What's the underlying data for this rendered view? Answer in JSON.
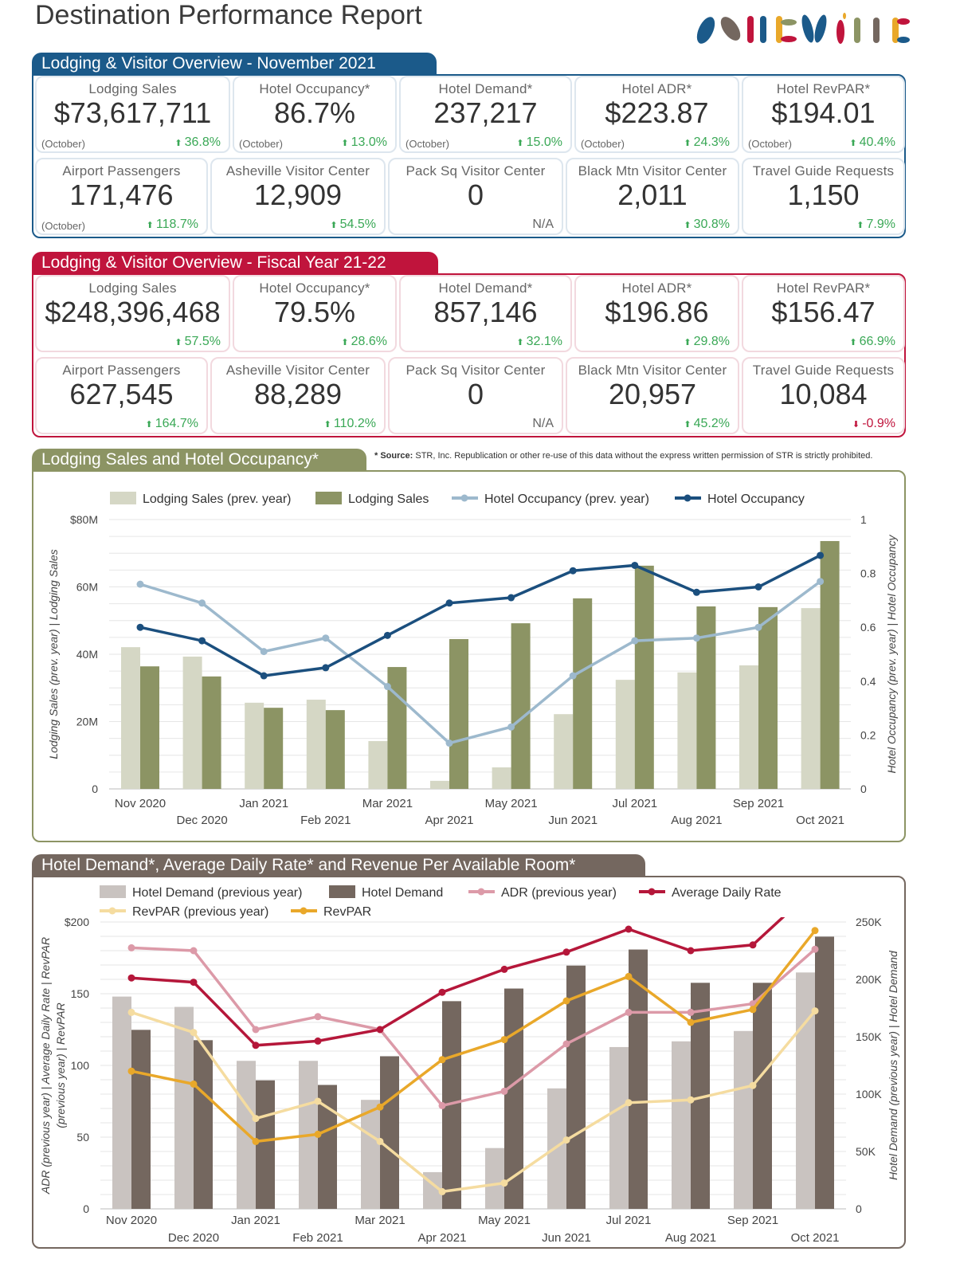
{
  "title": "Destination Performance Report",
  "logo": {
    "text": "ASHEVILLE",
    "colors": [
      "#1b5a8a",
      "#74675f",
      "#c0143c",
      "#e9a82a",
      "#8c9464"
    ]
  },
  "source_note": {
    "label": "* Source:",
    "text": " STR, Inc. Republication or other re-use of this data without the express written permission of STR is strictly prohibited."
  },
  "sections": [
    {
      "title": "Lodging & Visitor Overview -  November 2021",
      "color": "#1b5a8a",
      "rows": [
        [
          {
            "label": "Lodging Sales",
            "value": "$73,617,711",
            "note": "(October)",
            "change": "36.8%",
            "dir": "up"
          },
          {
            "label": "Hotel Occupancy*",
            "value": "86.7%",
            "note": "(October)",
            "change": "13.0%",
            "dir": "up"
          },
          {
            "label": "Hotel Demand*",
            "value": "237,217",
            "note": "(October)",
            "change": "15.0%",
            "dir": "up"
          },
          {
            "label": "Hotel ADR*",
            "value": "$223.87",
            "note": "(October)",
            "change": "24.3%",
            "dir": "up"
          },
          {
            "label": "Hotel RevPAR*",
            "value": "$194.01",
            "note": "(October)",
            "change": "40.4%",
            "dir": "up"
          }
        ],
        [
          {
            "label": "Airport Passengers",
            "value": "171,476",
            "note": "(October)",
            "change": "118.7%",
            "dir": "up"
          },
          {
            "label": "Asheville Visitor Center",
            "value": "12,909",
            "note": "",
            "change": "54.5%",
            "dir": "up"
          },
          {
            "label": "Pack Sq Visitor Center",
            "value": "0",
            "note": "",
            "change": "N/A",
            "dir": "na"
          },
          {
            "label": "Black Mtn Visitor Center",
            "value": "2,011",
            "note": "",
            "change": "30.8%",
            "dir": "up"
          },
          {
            "label": "Travel Guide Requests",
            "value": "1,150",
            "note": "",
            "change": "7.9%",
            "dir": "up"
          }
        ]
      ]
    },
    {
      "title": "Lodging & Visitor Overview - Fiscal Year 21-22",
      "color": "#c0143c",
      "rows": [
        [
          {
            "label": "Lodging Sales",
            "value": "$248,396,468",
            "note": "",
            "change": "57.5%",
            "dir": "up"
          },
          {
            "label": "Hotel Occupancy*",
            "value": "79.5%",
            "note": "",
            "change": "28.6%",
            "dir": "up"
          },
          {
            "label": "Hotel Demand*",
            "value": "857,146",
            "note": "",
            "change": "32.1%",
            "dir": "up"
          },
          {
            "label": "Hotel ADR*",
            "value": "$196.86",
            "note": "",
            "change": "29.8%",
            "dir": "up"
          },
          {
            "label": "Hotel RevPAR*",
            "value": "$156.47",
            "note": "",
            "change": "66.9%",
            "dir": "up"
          }
        ],
        [
          {
            "label": "Airport Passengers",
            "value": "627,545",
            "note": "",
            "change": "164.7%",
            "dir": "up"
          },
          {
            "label": "Asheville Visitor Center",
            "value": "88,289",
            "note": "",
            "change": "110.2%",
            "dir": "up"
          },
          {
            "label": "Pack Sq Visitor Center",
            "value": "0",
            "note": "",
            "change": "N/A",
            "dir": "na"
          },
          {
            "label": "Black Mtn Visitor Center",
            "value": "20,957",
            "note": "",
            "change": "45.2%",
            "dir": "up"
          },
          {
            "label": "Travel Guide Requests",
            "value": "10,084",
            "note": "",
            "change": "-0.9%",
            "dir": "down"
          }
        ]
      ]
    }
  ],
  "chart_data": [
    {
      "type": "bar",
      "title": "Lodging Sales and Hotel Occupancy*",
      "color": "#8c9464",
      "categories": [
        "Nov 2020",
        "Dec 2020",
        "Jan 2021",
        "Feb 2021",
        "Mar 2021",
        "Apr 2021",
        "May 2021",
        "Jun 2021",
        "Jul 2021",
        "Aug 2021",
        "Sep 2021",
        "Oct 2021"
      ],
      "ylabel": "Lodging Sales (prev. year) | Lodging Sales",
      "y2label": "Hotel Occupancy (prev. year) | Hotel Occupancy",
      "ylim": [
        0,
        80000000
      ],
      "y2lim": [
        0,
        1
      ],
      "yticks": [
        "0",
        "20M",
        "40M",
        "60M",
        "$80M"
      ],
      "y2ticks": [
        "0",
        "0.2",
        "0.4",
        "0.6",
        "0.8",
        "1"
      ],
      "legend_position": "top",
      "grid": true,
      "series": [
        {
          "name": "Lodging Sales (prev. year)",
          "kind": "bar",
          "axis": "left",
          "color": "#d5d7c5",
          "values": [
            42100000,
            39300000,
            25600000,
            26500000,
            14200000,
            2400000,
            6400000,
            22200000,
            32400000,
            34600000,
            36700000,
            53700000
          ]
        },
        {
          "name": "Lodging Sales",
          "kind": "bar",
          "axis": "left",
          "color": "#8c9464",
          "values": [
            36400000,
            33400000,
            24100000,
            23400000,
            36200000,
            44500000,
            49200000,
            56600000,
            66300000,
            54200000,
            54000000,
            73617711
          ]
        },
        {
          "name": "Hotel Occupancy (prev. year)",
          "kind": "line",
          "axis": "right",
          "color": "#9db9cd",
          "values": [
            0.76,
            0.69,
            0.51,
            0.56,
            0.38,
            0.17,
            0.23,
            0.42,
            0.55,
            0.56,
            0.6,
            0.77
          ]
        },
        {
          "name": "Hotel Occupancy",
          "kind": "line",
          "axis": "right",
          "color": "#1b4f7e",
          "values": [
            0.6,
            0.55,
            0.42,
            0.45,
            0.57,
            0.69,
            0.71,
            0.81,
            0.83,
            0.73,
            0.75,
            0.867
          ]
        }
      ]
    },
    {
      "type": "bar",
      "title": "Hotel Demand*, Average Daily Rate* and Revenue Per Available Room*",
      "color": "#74675f",
      "categories": [
        "Nov 2020",
        "Dec 2020",
        "Jan 2021",
        "Feb 2021",
        "Mar 2021",
        "Apr 2021",
        "May 2021",
        "Jun 2021",
        "Jul 2021",
        "Aug 2021",
        "Sep 2021",
        "Oct 2021"
      ],
      "ylabel": [
        "ADR (previous year) | Average Daily Rate | RevPAR",
        "(previous year) | RevPAR"
      ],
      "y2label": "Hotel Demand (previous year) | Hotel Demand",
      "ylim": [
        0,
        200
      ],
      "y2lim": [
        0,
        250000
      ],
      "yticks": [
        "0",
        "50",
        "100",
        "150",
        "$200"
      ],
      "y2ticks": [
        "0",
        "50K",
        "100K",
        "150K",
        "200K",
        "250K"
      ],
      "legend_position": "top",
      "grid": true,
      "series": [
        {
          "name": "Hotel Demand (previous year)",
          "kind": "bar",
          "axis": "right",
          "color": "#c9c3c0",
          "values": [
            185000,
            176000,
            129000,
            129000,
            95000,
            32000,
            53000,
            105000,
            141000,
            146000,
            155000,
            206000
          ]
        },
        {
          "name": "Hotel Demand",
          "kind": "bar",
          "axis": "right",
          "color": "#74675f",
          "values": [
            156000,
            147000,
            112000,
            108000,
            133000,
            181000,
            192000,
            212000,
            226000,
            197000,
            197000,
            237217
          ]
        },
        {
          "name": "ADR (previous year)",
          "kind": "line",
          "axis": "left",
          "color": "#dc9aa8",
          "values": [
            182,
            180,
            125,
            134,
            125,
            72,
            82,
            115,
            137,
            137,
            143,
            181
          ]
        },
        {
          "name": "Average Daily Rate",
          "kind": "line",
          "axis": "left",
          "color": "#b5173a",
          "values": [
            161,
            158,
            114,
            117,
            125,
            151,
            167,
            179,
            195,
            180,
            184,
            223.87
          ]
        },
        {
          "name": "RevPAR (previous year)",
          "kind": "line",
          "axis": "left",
          "color": "#f5dca0",
          "values": [
            137,
            123,
            63,
            75,
            47,
            12,
            18,
            48,
            74,
            76,
            86,
            138
          ]
        },
        {
          "name": "RevPAR",
          "kind": "line",
          "axis": "left",
          "color": "#e9a82a",
          "values": [
            96,
            87,
            47,
            52,
            71,
            104,
            118,
            145,
            162,
            130,
            139,
            194.01
          ]
        }
      ]
    }
  ]
}
